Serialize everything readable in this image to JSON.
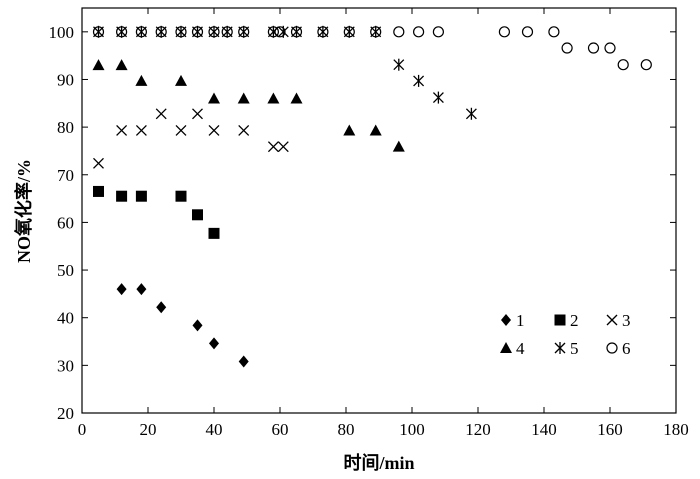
{
  "chart_data": {
    "type": "scatter",
    "title": "",
    "xlabel": "时间/min",
    "ylabel": "NO氧化率/%",
    "xlim": [
      0,
      180
    ],
    "ylim": [
      20,
      105
    ],
    "xticks": [
      0,
      20,
      40,
      60,
      80,
      100,
      120,
      140,
      160,
      180
    ],
    "yticks": [
      20,
      30,
      40,
      50,
      60,
      70,
      80,
      90,
      100
    ],
    "grid": false,
    "legend_position": "bottom-right",
    "series": [
      {
        "name": "1",
        "marker": "diamond-filled",
        "x": [
          12,
          18,
          24,
          35,
          40,
          49
        ],
        "y": [
          46,
          46,
          42.2,
          38.4,
          34.6,
          30.8
        ]
      },
      {
        "name": "2",
        "marker": "square-filled",
        "x": [
          5,
          12,
          18,
          30,
          35,
          40
        ],
        "y": [
          66.5,
          65.5,
          65.5,
          65.5,
          61.6,
          57.7
        ]
      },
      {
        "name": "3",
        "marker": "x-cross",
        "x": [
          5,
          12,
          18,
          24,
          30,
          35,
          40,
          49,
          58,
          61
        ],
        "y": [
          72.4,
          79.3,
          79.3,
          82.8,
          79.3,
          82.8,
          79.3,
          79.3,
          75.9,
          75.9
        ]
      },
      {
        "name": "4",
        "marker": "triangle-filled",
        "x": [
          5,
          12,
          18,
          30,
          40,
          49,
          58,
          65,
          81,
          89,
          96
        ],
        "y": [
          93,
          93,
          89.7,
          89.7,
          86,
          86,
          86,
          86,
          79.3,
          79.3,
          75.9
        ]
      },
      {
        "name": "5",
        "marker": "asterisk",
        "x": [
          5,
          12,
          18,
          24,
          30,
          35,
          40,
          44,
          49,
          58,
          61,
          65,
          73,
          81,
          89,
          96,
          102,
          108,
          118
        ],
        "y": [
          100,
          100,
          100,
          100,
          100,
          100,
          100,
          100,
          100,
          100,
          100,
          100,
          100,
          100,
          100,
          93.1,
          89.7,
          86.2,
          82.8
        ]
      },
      {
        "name": "6",
        "marker": "circle-open",
        "x": [
          5,
          12,
          18,
          24,
          30,
          35,
          40,
          44,
          49,
          58,
          60,
          65,
          73,
          81,
          89,
          96,
          102,
          108,
          128,
          135,
          143,
          147,
          155,
          160,
          164,
          171
        ],
        "y": [
          100,
          100,
          100,
          100,
          100,
          100,
          100,
          100,
          100,
          100,
          100,
          100,
          100,
          100,
          100,
          100,
          100,
          100,
          100,
          100,
          100,
          96.6,
          96.6,
          96.6,
          93.1,
          93.1
        ]
      }
    ]
  }
}
